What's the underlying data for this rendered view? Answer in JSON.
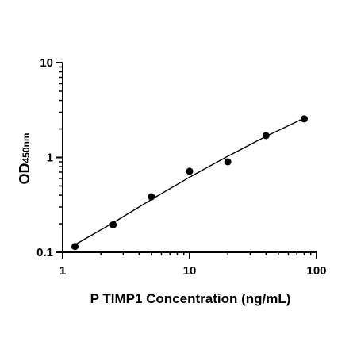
{
  "chart_data": {
    "type": "scatter",
    "title": "",
    "xlabel": "P TIMP1 Concentration (ng/mL)",
    "ylabel": {
      "main": "OD",
      "subscript": "450nm"
    },
    "x_scale": "log",
    "y_scale": "log",
    "xlim": [
      1,
      100
    ],
    "ylim": [
      0.1,
      10
    ],
    "x_ticks": [
      "1",
      "10",
      "100"
    ],
    "y_ticks": [
      "0.1",
      "1",
      "10"
    ],
    "grid": false,
    "legend": "none",
    "series": [
      {
        "x": [
          1.25,
          2.5,
          5,
          10,
          20,
          40,
          80
        ],
        "y": [
          0.115,
          0.195,
          0.385,
          0.715,
          0.9,
          1.7,
          2.55
        ]
      }
    ],
    "fit_curve": {
      "x": [
        1.25,
        2.5,
        5,
        10,
        20,
        40,
        80
      ],
      "y": [
        0.12,
        0.205,
        0.36,
        0.62,
        1.03,
        1.67,
        2.6
      ]
    },
    "colors": {
      "marks": "#000000",
      "axes": "#000000"
    }
  }
}
